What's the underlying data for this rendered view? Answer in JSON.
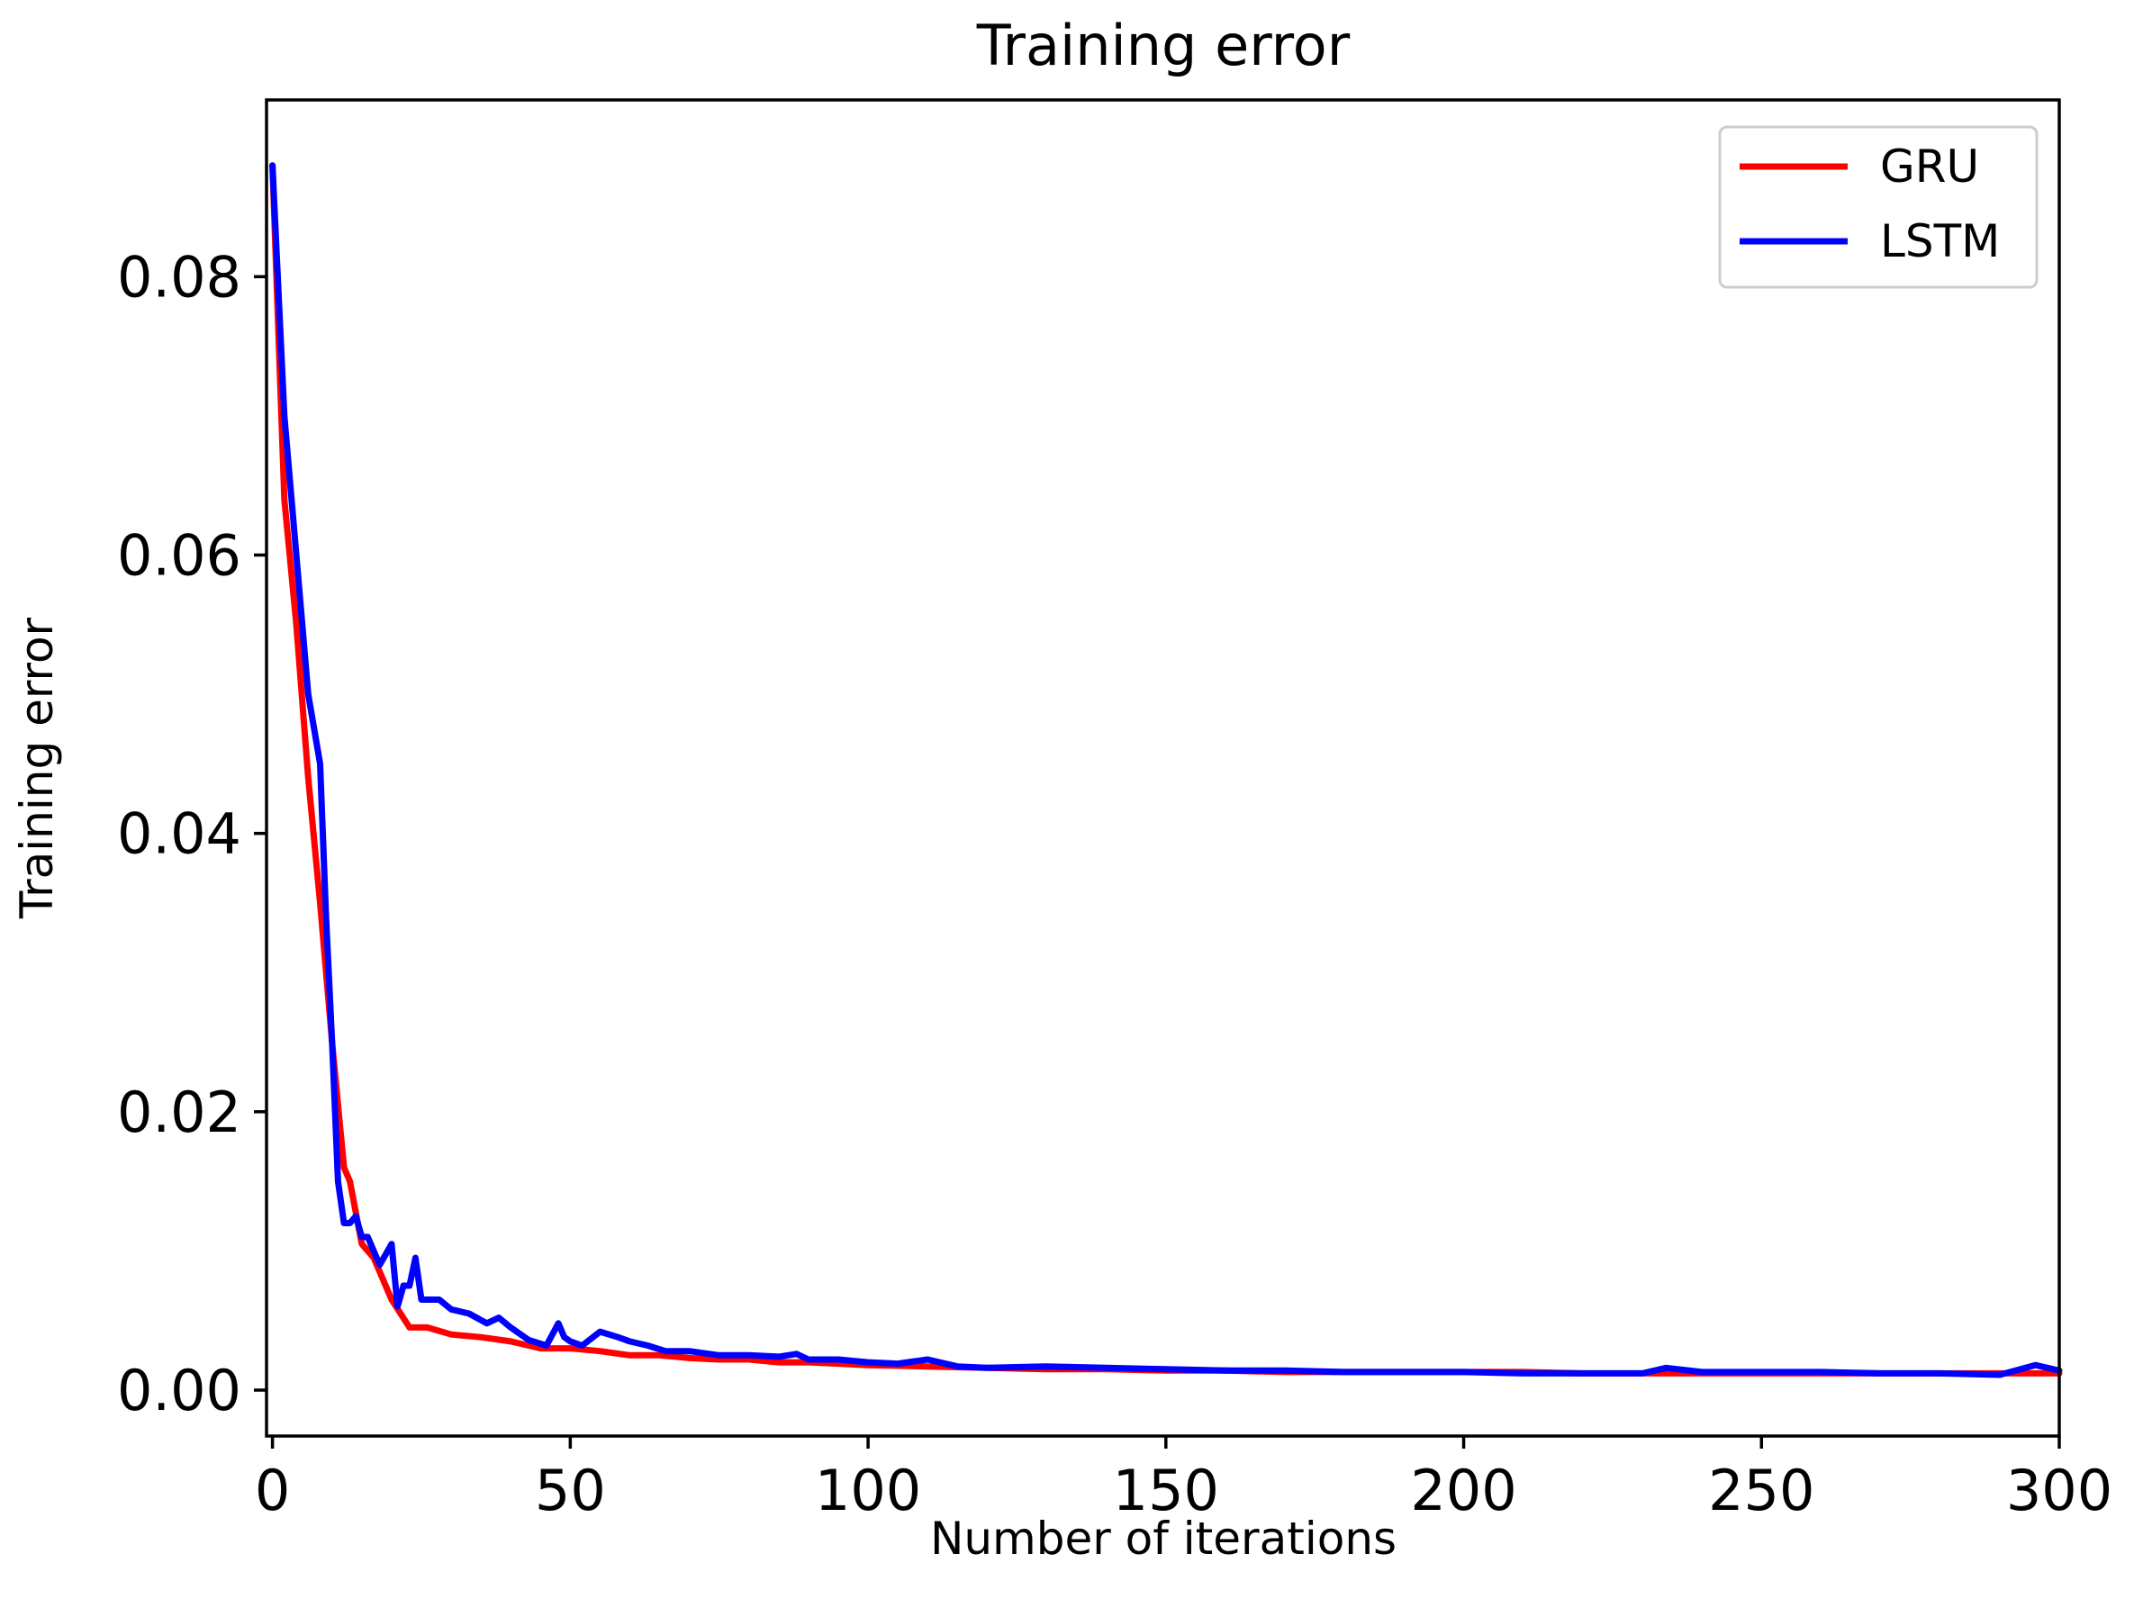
{
  "chart_data": {
    "type": "line",
    "title": "Training error",
    "xlabel": "Number of iterations",
    "ylabel": "Training error",
    "xlim": [
      -1,
      300
    ],
    "ylim": [
      -0.0033,
      0.0927
    ],
    "xticks": [
      0,
      50,
      100,
      150,
      200,
      250,
      300
    ],
    "yticks": [
      0.0,
      0.02,
      0.04,
      0.06,
      0.08
    ],
    "ytick_labels": [
      "0.00",
      "0.02",
      "0.04",
      "0.06",
      "0.08"
    ],
    "grid": false,
    "legend_position": "top-right",
    "series": [
      {
        "name": "GRU",
        "color": "#ff0000",
        "x": [
          0,
          2,
          4,
          6,
          8,
          10,
          12,
          13,
          15,
          17,
          20,
          23,
          26,
          30,
          35,
          40,
          45,
          50,
          55,
          60,
          65,
          70,
          75,
          80,
          85,
          90,
          95,
          100,
          110,
          120,
          130,
          140,
          150,
          160,
          170,
          180,
          190,
          200,
          210,
          220,
          230,
          240,
          250,
          260,
          270,
          280,
          290,
          300
        ],
        "y": [
          0.088,
          0.064,
          0.055,
          0.044,
          0.035,
          0.025,
          0.016,
          0.015,
          0.0105,
          0.0095,
          0.0065,
          0.0045,
          0.0045,
          0.004,
          0.0038,
          0.0035,
          0.003,
          0.003,
          0.0028,
          0.0025,
          0.0025,
          0.0023,
          0.0022,
          0.0022,
          0.002,
          0.002,
          0.0019,
          0.0018,
          0.0017,
          0.0016,
          0.0015,
          0.0015,
          0.0014,
          0.0014,
          0.0013,
          0.0013,
          0.0013,
          0.0013,
          0.0013,
          0.0012,
          0.0012,
          0.0012,
          0.0012,
          0.0012,
          0.0012,
          0.0012,
          0.0012,
          0.0012
        ]
      },
      {
        "name": "LSTM",
        "color": "#0000ff",
        "x": [
          0,
          2,
          4,
          6,
          8,
          9,
          10,
          11,
          12,
          13,
          14,
          15,
          16,
          18,
          20,
          21,
          22,
          23,
          24,
          25,
          28,
          30,
          33,
          36,
          38,
          40,
          43,
          46,
          48,
          49,
          50,
          52,
          55,
          58,
          60,
          63,
          66,
          70,
          75,
          80,
          85,
          88,
          90,
          95,
          100,
          105,
          110,
          115,
          120,
          130,
          140,
          150,
          160,
          170,
          180,
          190,
          200,
          210,
          220,
          230,
          234,
          240,
          250,
          260,
          270,
          280,
          290,
          296,
          300
        ],
        "y": [
          0.088,
          0.07,
          0.06,
          0.05,
          0.045,
          0.034,
          0.025,
          0.015,
          0.012,
          0.012,
          0.0125,
          0.011,
          0.011,
          0.009,
          0.0105,
          0.006,
          0.0075,
          0.0075,
          0.0095,
          0.0065,
          0.0065,
          0.0058,
          0.0055,
          0.0048,
          0.0052,
          0.0045,
          0.0036,
          0.0032,
          0.0048,
          0.0038,
          0.0035,
          0.0032,
          0.0042,
          0.0038,
          0.0035,
          0.0032,
          0.0028,
          0.0028,
          0.0025,
          0.0025,
          0.0024,
          0.0026,
          0.0022,
          0.0022,
          0.002,
          0.0019,
          0.0022,
          0.0017,
          0.0016,
          0.0017,
          0.0016,
          0.0015,
          0.0014,
          0.0014,
          0.0013,
          0.0013,
          0.0013,
          0.0012,
          0.0012,
          0.0012,
          0.0016,
          0.0013,
          0.0013,
          0.0013,
          0.0012,
          0.0012,
          0.0011,
          0.0018,
          0.0014
        ]
      }
    ]
  }
}
